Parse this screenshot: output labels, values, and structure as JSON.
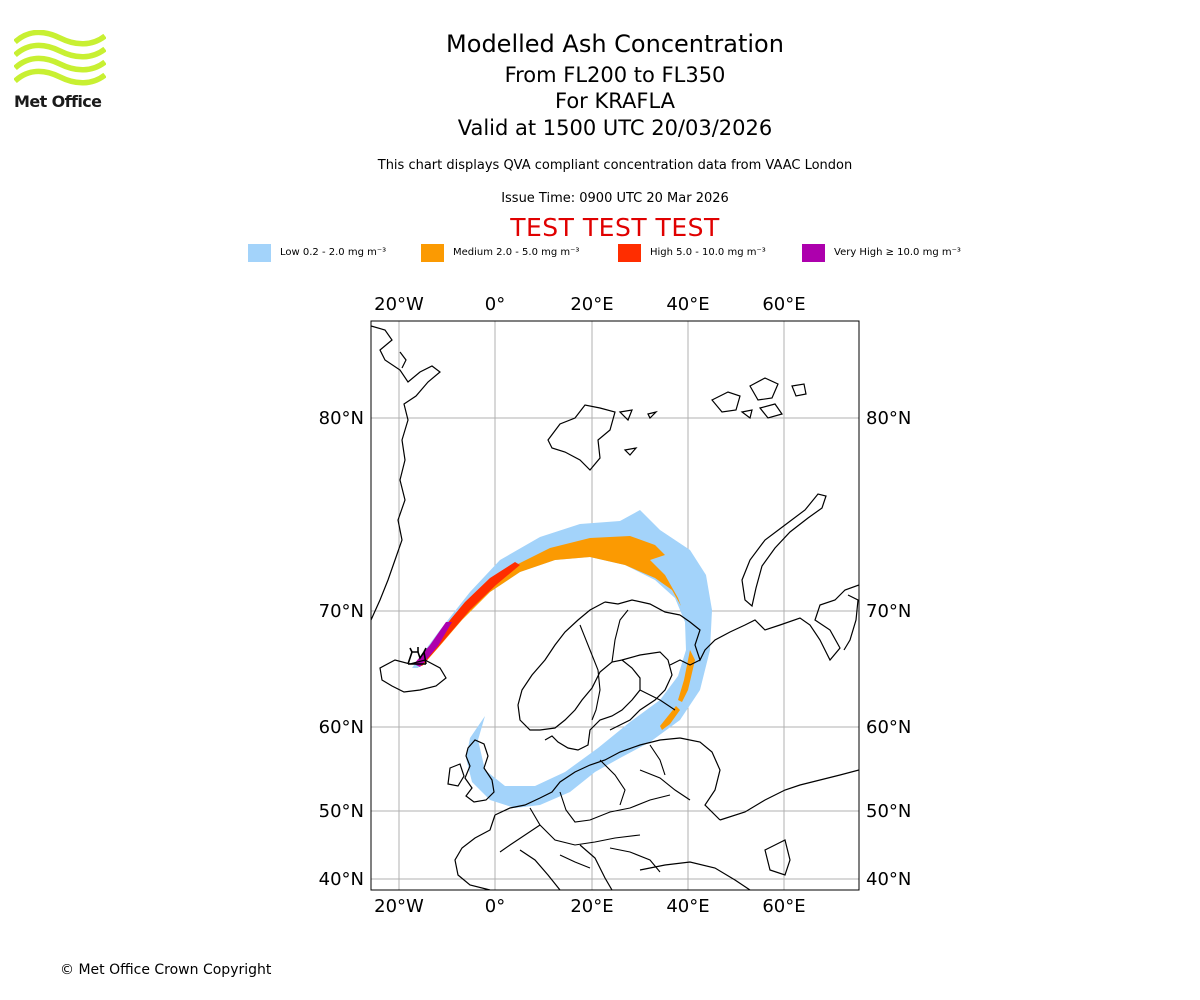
{
  "logo": {
    "text": "Met Office",
    "colors": {
      "waves": "#c8f032"
    }
  },
  "header": {
    "title": "Modelled Ash Concentration",
    "levels": "From FL200 to FL350",
    "volcano": "For KRAFLA",
    "valid": "Valid at 1500 UTC 20/03/2026",
    "description": "This chart displays QVA compliant concentration data from VAAC London",
    "issue_time": "Issue Time: 0900 UTC 20 Mar 2026",
    "test_banner": "TEST TEST TEST"
  },
  "legend": [
    {
      "label": "Low 0.2 - 2.0 mg m⁻³",
      "color": "#a3d3fa"
    },
    {
      "label": "Medium 2.0 - 5.0 mg m⁻³",
      "color": "#fb9a02"
    },
    {
      "label": "High 5.0 - 10.0 mg m⁻³",
      "color": "#ff2d00"
    },
    {
      "label": "Very High  ≥  10.0 mg m⁻³",
      "color": "#ad00ad"
    }
  ],
  "map": {
    "lon_labels": [
      "20°W",
      "0°",
      "20°E",
      "40°E",
      "60°E"
    ],
    "lat_labels": [
      "80°N",
      "70°N",
      "60°N",
      "50°N",
      "40°N"
    ],
    "extent": {
      "lon": [
        -25,
        75
      ],
      "lat": [
        39,
        86
      ]
    },
    "gridlines": true,
    "volcano_marker": "volcano-icon"
  },
  "footer": {
    "copyright": "© Met Office Crown Copyright"
  }
}
